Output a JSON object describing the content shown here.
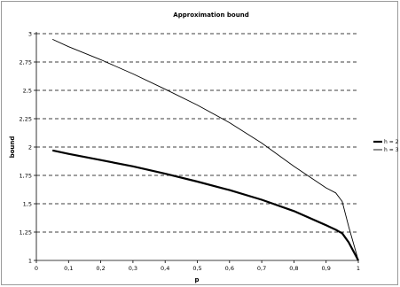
{
  "chart_data": {
    "type": "line",
    "title": "Approximation bound",
    "xlabel": "p",
    "ylabel": "bound",
    "xlim": [
      0,
      1
    ],
    "ylim": [
      1,
      3
    ],
    "x_ticks": [
      "0",
      "0,1",
      "0,2",
      "0,3",
      "0,4",
      "0,5",
      "0,6",
      "0,7",
      "0,8",
      "0,9",
      "1"
    ],
    "y_ticks": [
      "1",
      "1,25",
      "1,5",
      "1,75",
      "2",
      "2,25",
      "2,5",
      "2,75",
      "3"
    ],
    "grid": "horizontal dashed",
    "legend_position": "right",
    "series": [
      {
        "name": "h = 2",
        "color": "#000000",
        "weight": "thick",
        "x": [
          0.05,
          0.1,
          0.2,
          0.3,
          0.4,
          0.5,
          0.6,
          0.7,
          0.8,
          0.9,
          0.93,
          0.95,
          0.97,
          1.0
        ],
        "y": [
          1.97,
          1.94,
          1.885,
          1.83,
          1.765,
          1.695,
          1.62,
          1.535,
          1.435,
          1.31,
          1.27,
          1.24,
          1.16,
          1.0
        ]
      },
      {
        "name": "h = 3",
        "color": "#000000",
        "weight": "thin",
        "x": [
          0.05,
          0.1,
          0.2,
          0.3,
          0.4,
          0.5,
          0.6,
          0.7,
          0.8,
          0.9,
          0.93,
          0.95,
          0.97,
          1.0
        ],
        "y": [
          2.95,
          2.885,
          2.77,
          2.645,
          2.51,
          2.37,
          2.215,
          2.035,
          1.83,
          1.64,
          1.595,
          1.52,
          1.3,
          1.0
        ]
      }
    ]
  }
}
